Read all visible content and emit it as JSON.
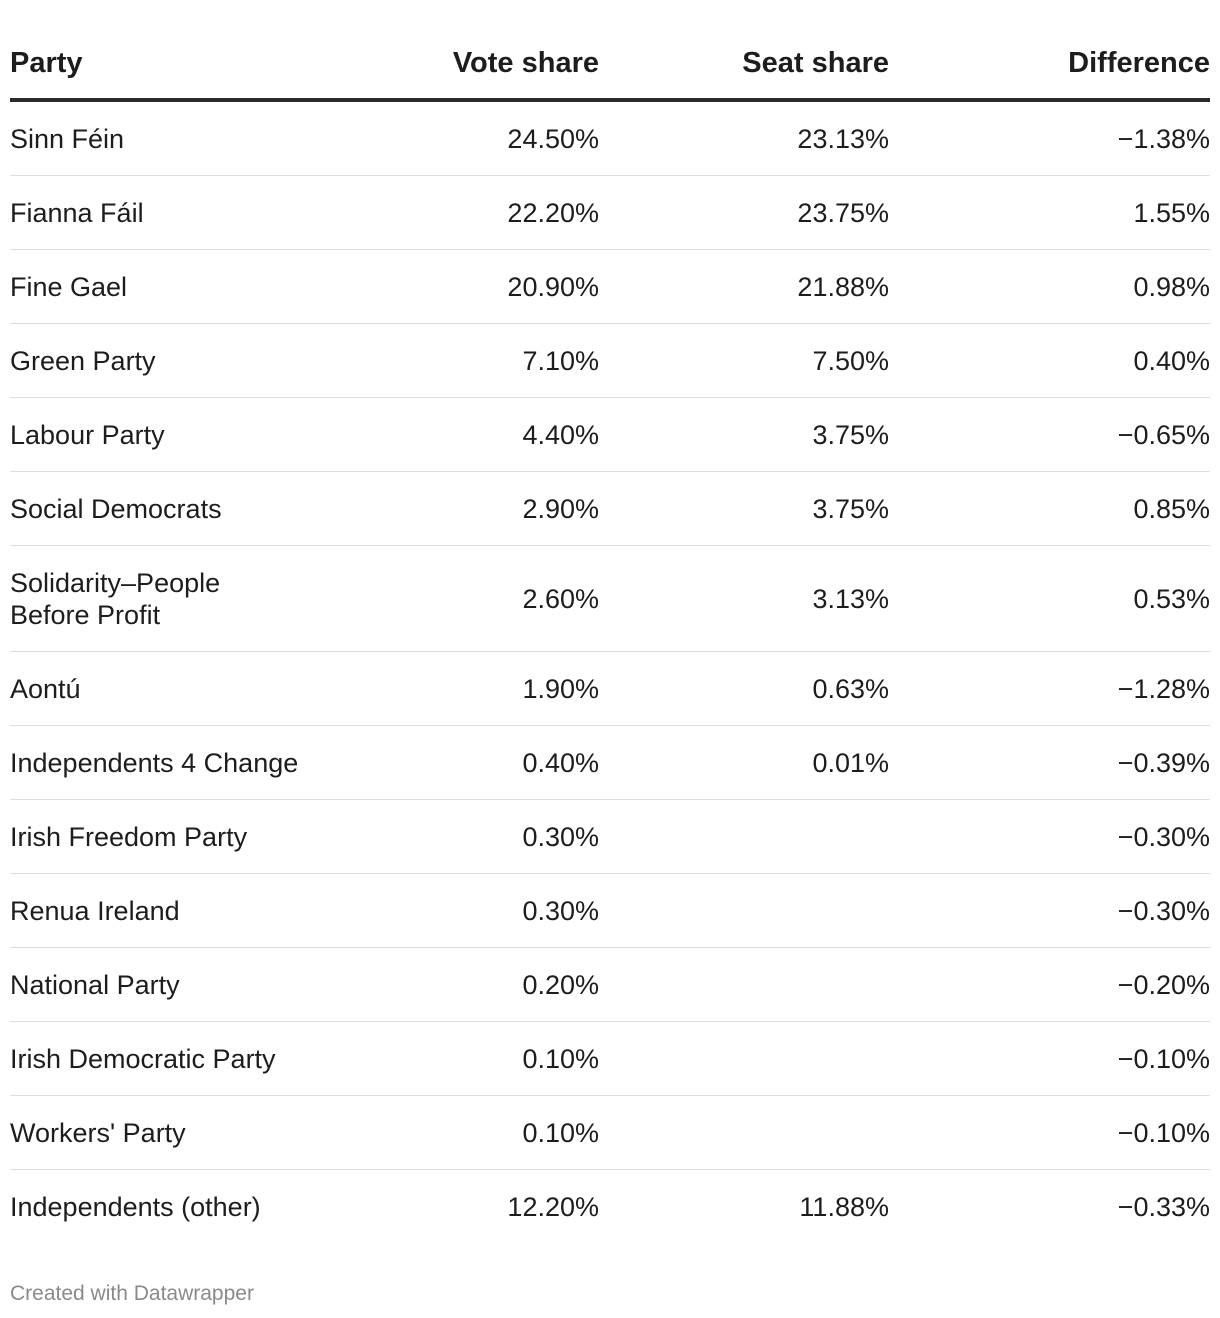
{
  "chart_data": {
    "type": "table",
    "columns": [
      "Party",
      "Vote share",
      "Seat share",
      "Difference"
    ],
    "rows": [
      {
        "party": "Sinn Féin",
        "vote_share": "24.50%",
        "seat_share": "23.13%",
        "difference": "−1.38%"
      },
      {
        "party": "Fianna Fáil",
        "vote_share": "22.20%",
        "seat_share": "23.75%",
        "difference": "1.55%"
      },
      {
        "party": "Fine Gael",
        "vote_share": "20.90%",
        "seat_share": "21.88%",
        "difference": "0.98%"
      },
      {
        "party": "Green Party",
        "vote_share": "7.10%",
        "seat_share": "7.50%",
        "difference": "0.40%"
      },
      {
        "party": "Labour Party",
        "vote_share": "4.40%",
        "seat_share": "3.75%",
        "difference": "−0.65%"
      },
      {
        "party": "Social Democrats",
        "vote_share": "2.90%",
        "seat_share": "3.75%",
        "difference": "0.85%"
      },
      {
        "party": "Solidarity–People Before Profit",
        "vote_share": "2.60%",
        "seat_share": "3.13%",
        "difference": "0.53%"
      },
      {
        "party": "Aontú",
        "vote_share": "1.90%",
        "seat_share": "0.63%",
        "difference": "−1.28%"
      },
      {
        "party": "Independents 4 Change",
        "vote_share": "0.40%",
        "seat_share": "0.01%",
        "difference": "−0.39%"
      },
      {
        "party": "Irish Freedom Party",
        "vote_share": "0.30%",
        "seat_share": "",
        "difference": "−0.30%"
      },
      {
        "party": "Renua Ireland",
        "vote_share": "0.30%",
        "seat_share": "",
        "difference": "−0.30%"
      },
      {
        "party": "National Party",
        "vote_share": "0.20%",
        "seat_share": "",
        "difference": "−0.20%"
      },
      {
        "party": "Irish Democratic Party",
        "vote_share": "0.10%",
        "seat_share": "",
        "difference": "−0.10%"
      },
      {
        "party": "Workers' Party",
        "vote_share": "0.10%",
        "seat_share": "",
        "difference": "−0.10%"
      },
      {
        "party": "Independents (other)",
        "vote_share": "12.20%",
        "seat_share": "11.88%",
        "difference": "−0.33%"
      }
    ]
  },
  "footer": {
    "credit": "Created with Datawrapper"
  },
  "colors": {
    "text": "#1d1d1d",
    "header_rule": "#2b2b2b",
    "row_rule": "#dedede",
    "footer_text": "#8a8a8a"
  }
}
